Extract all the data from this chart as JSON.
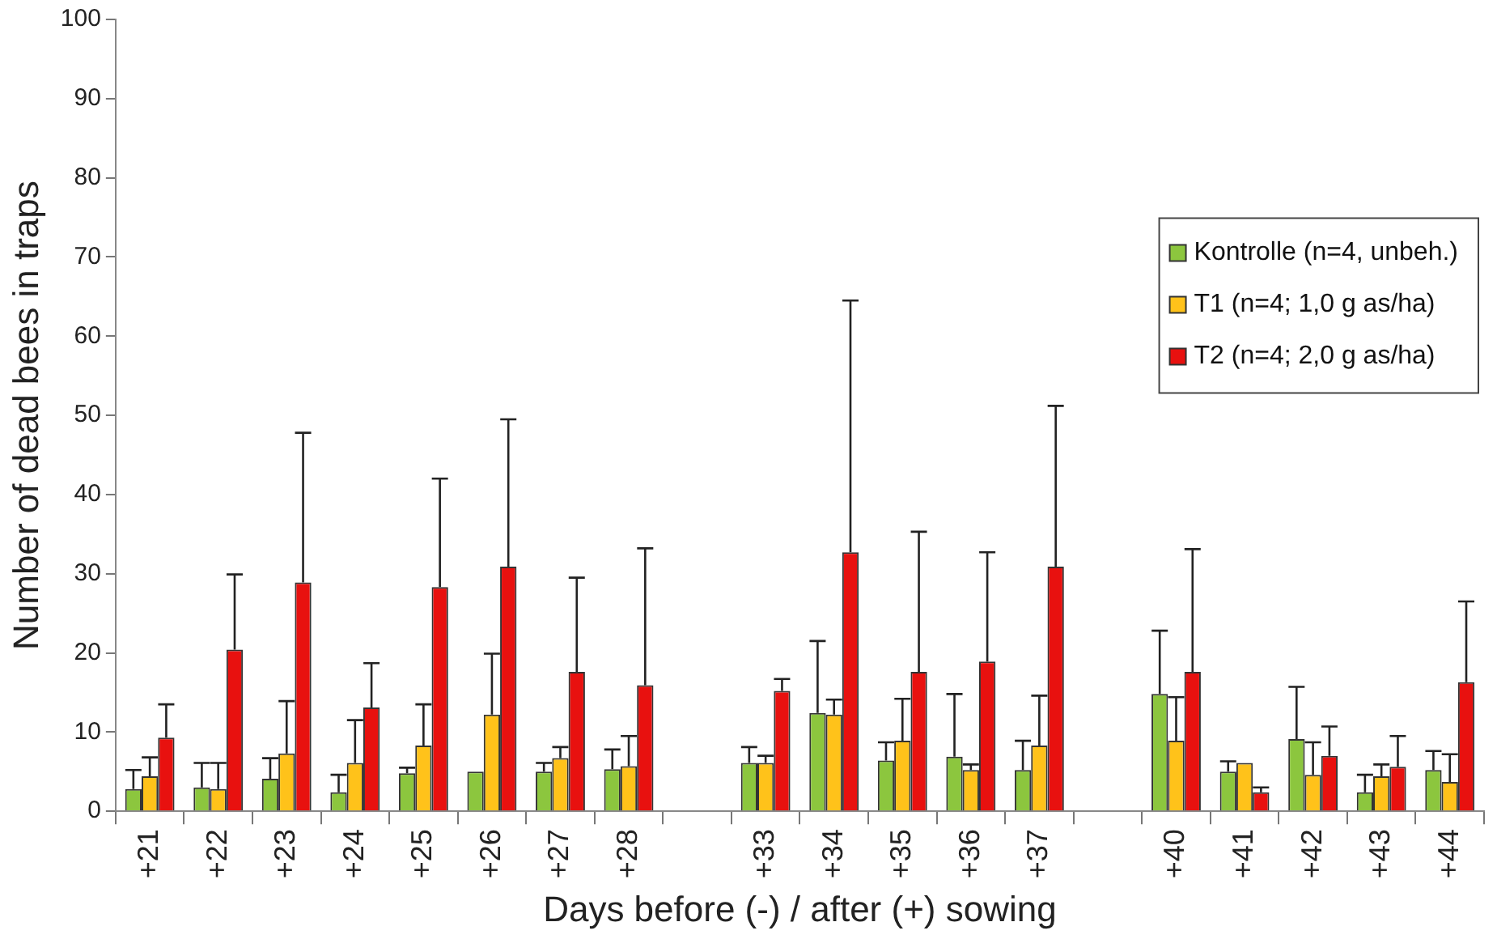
{
  "chart_data": {
    "type": "bar",
    "ylabel": "Number of dead bees in traps",
    "xlabel": "Days before (-) / after (+) sowing",
    "categories": [
      "+21",
      "+22",
      "+23",
      "+24",
      "+25",
      "+26",
      "+27",
      "+28",
      null,
      "+33",
      "+34",
      "+35",
      "+36",
      "+37",
      null,
      "+40",
      "+41",
      "+42",
      "+43",
      "+44"
    ],
    "series": [
      {
        "name": "Kontrolle (n=4, unbeh.)",
        "color": "#8cc63e",
        "values": [
          2.8,
          3.0,
          4.1,
          2.4,
          4.8,
          5.0,
          5.0,
          5.3,
          null,
          6.1,
          12.4,
          6.4,
          6.9,
          5.2,
          null,
          14.8,
          5.0,
          9.1,
          2.4,
          5.2
        ],
        "errors": [
          [
            2.8,
            5.2
          ],
          [
            3.0,
            6.1
          ],
          [
            4.1,
            6.7
          ],
          [
            2.4,
            4.6
          ],
          [
            4.8,
            5.5
          ],
          null,
          [
            5.0,
            6.1
          ],
          [
            5.3,
            7.8
          ],
          null,
          [
            6.1,
            8.1
          ],
          [
            12.4,
            21.5
          ],
          [
            6.4,
            8.7
          ],
          [
            6.9,
            14.8
          ],
          [
            5.2,
            8.9
          ],
          null,
          [
            14.8,
            22.8
          ],
          [
            5.0,
            6.3
          ],
          [
            9.1,
            15.7
          ],
          [
            2.4,
            4.6
          ],
          [
            5.2,
            7.6
          ]
        ]
      },
      {
        "name": "T1 (n=4; 1,0 g as/ha)",
        "color": "#ffc21a",
        "values": [
          4.4,
          2.8,
          7.3,
          6.1,
          8.3,
          12.2,
          6.7,
          5.7,
          null,
          6.1,
          12.2,
          8.9,
          5.2,
          8.3,
          null,
          8.9,
          6.1,
          4.6,
          4.4,
          3.7
        ],
        "errors": [
          [
            4.4,
            6.8
          ],
          [
            2.8,
            6.1
          ],
          [
            7.3,
            13.9
          ],
          [
            6.1,
            11.5
          ],
          [
            8.3,
            13.5
          ],
          [
            12.2,
            19.9
          ],
          [
            6.7,
            8.1
          ],
          [
            5.7,
            9.5
          ],
          null,
          [
            6.1,
            7.0
          ],
          [
            12.2,
            14.1
          ],
          [
            8.9,
            14.2
          ],
          [
            5.2,
            5.9
          ],
          [
            8.3,
            14.6
          ],
          null,
          [
            8.9,
            14.4
          ],
          null,
          [
            4.6,
            8.7
          ],
          [
            4.4,
            5.9
          ],
          [
            3.7,
            7.2
          ]
        ]
      },
      {
        "name": "T2 (n=4; 2,0 g as/ha)",
        "color": "#e8110f",
        "values": [
          9.3,
          20.4,
          28.9,
          13.1,
          28.3,
          30.9,
          17.6,
          15.9,
          null,
          15.2,
          32.7,
          17.6,
          18.9,
          30.9,
          null,
          17.6,
          2.4,
          7.0,
          5.6,
          16.3
        ],
        "errors": [
          [
            9.3,
            13.5
          ],
          [
            20.4,
            29.9
          ],
          [
            28.9,
            47.8
          ],
          [
            13.1,
            18.7
          ],
          [
            28.3,
            42.0
          ],
          [
            30.9,
            49.5
          ],
          [
            17.6,
            29.5
          ],
          [
            15.9,
            33.2
          ],
          null,
          [
            15.2,
            16.7
          ],
          [
            32.7,
            64.5
          ],
          [
            17.6,
            35.3
          ],
          [
            18.9,
            32.7
          ],
          [
            30.9,
            51.2
          ],
          null,
          [
            17.6,
            33.1
          ],
          [
            2.4,
            3.0
          ],
          [
            7.0,
            10.7
          ],
          [
            5.6,
            9.5
          ],
          [
            16.3,
            26.5
          ]
        ]
      }
    ],
    "ylim": [
      0,
      100
    ],
    "yticks": [
      0,
      10,
      20,
      30,
      40,
      50,
      60,
      70,
      80,
      90,
      100
    ],
    "grid": false,
    "legend": "right"
  }
}
